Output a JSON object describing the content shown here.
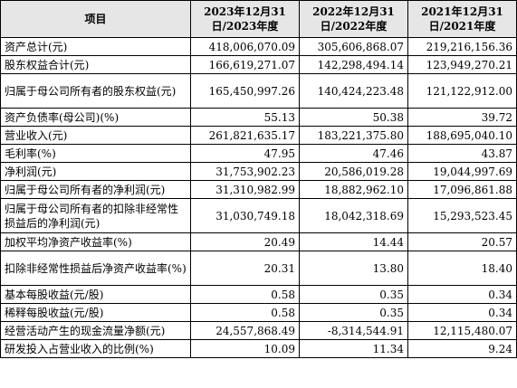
{
  "headers": {
    "item": "项目",
    "y2023": "2023年12月31日/2023年度",
    "y2022": "2022年12月31日/2022年度",
    "y2021": "2021年12月31日/2021年度"
  },
  "rows": [
    {
      "label": "资产总计(元)",
      "v2023": "418,006,070.09",
      "v2022": "305,606,868.07",
      "v2021": "219,216,156.36"
    },
    {
      "label": "股东权益合计(元)",
      "v2023": "166,619,271.07",
      "v2022": "142,298,494.14",
      "v2021": "123,949,270.21"
    },
    {
      "label": "归属于母公司所有者的股东权益(元)",
      "v2023": "165,450,997.26",
      "v2022": "140,424,223.48",
      "v2021": "121,122,912.00"
    },
    {
      "label": "资产负债率(母公司)(%)",
      "v2023": "55.13",
      "v2022": "50.38",
      "v2021": "39.72"
    },
    {
      "label": "营业收入(元)",
      "v2023": "261,821,635.17",
      "v2022": "183,221,375.80",
      "v2021": "188,695,040.10"
    },
    {
      "label": "毛利率(%)",
      "v2023": "47.95",
      "v2022": "47.46",
      "v2021": "43.87"
    },
    {
      "label": "净利润(元)",
      "v2023": "31,753,902.23",
      "v2022": "20,586,019.28",
      "v2021": "19,044,997.69"
    },
    {
      "label": "归属于母公司所有者的净利润(元)",
      "v2023": "31,310,982.99",
      "v2022": "18,882,962.10",
      "v2021": "17,096,861.88"
    },
    {
      "label": "归属于母公司所有者的扣除非经常性损益后的净利润(元)",
      "v2023": "31,030,749.18",
      "v2022": "18,042,318.69",
      "v2021": "15,293,523.45"
    },
    {
      "label": "加权平均净资产收益率(%)",
      "v2023": "20.49",
      "v2022": "14.44",
      "v2021": "20.57"
    },
    {
      "label": "扣除非经常性损益后净资产收益率(%)",
      "v2023": "20.31",
      "v2022": "13.80",
      "v2021": "18.40"
    },
    {
      "label": "基本每股收益(元/股)",
      "v2023": "0.58",
      "v2022": "0.35",
      "v2021": "0.34"
    },
    {
      "label": "稀释每股收益(元/股)",
      "v2023": "0.58",
      "v2022": "0.35",
      "v2021": "0.34"
    },
    {
      "label": "经营活动产生的现金流量净额(元)",
      "v2023": "24,557,868.49",
      "v2022": "-8,314,544.91",
      "v2021": "12,115,480.07"
    },
    {
      "label": "研发投入占营业收入的比例(%)",
      "v2023": "10.09",
      "v2022": "11.34",
      "v2021": "9.24"
    }
  ]
}
